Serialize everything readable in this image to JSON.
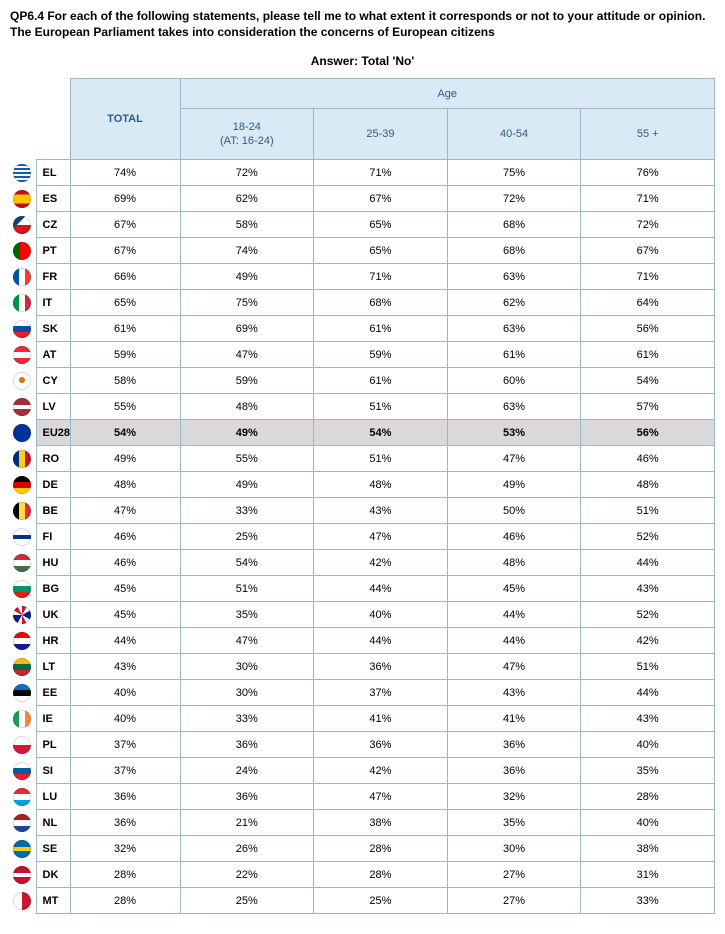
{
  "question": {
    "line1": "QP6.4 For each of the following statements, please tell me to what extent it corresponds or not to your attitude or opinion.",
    "line2": "The European Parliament takes into consideration the concerns of European citizens"
  },
  "answer_label": "Answer: Total 'No'",
  "headers": {
    "total": "TOTAL",
    "age_span": "Age",
    "age_cols": [
      {
        "l1": "18-24",
        "l2": "(AT: 16-24)"
      },
      {
        "l1": "25-39",
        "l2": ""
      },
      {
        "l1": "40-54",
        "l2": ""
      },
      {
        "l1": "55 +",
        "l2": ""
      }
    ]
  },
  "colors": {
    "header_bg": "#daeaf4",
    "header_text": "#2b5a8c",
    "border": "#9ab7cc",
    "highlight_bg": "#d9d9d9"
  },
  "flag_gradients": {
    "EL": "linear-gradient(180deg,#0d5eaf 0 11%,#fff 11% 22%,#0d5eaf 22% 33%,#fff 33% 44%,#0d5eaf 44% 55%,#fff 55% 66%,#0d5eaf 66% 77%,#fff 77% 88%,#0d5eaf 88% 100%)",
    "ES": "linear-gradient(180deg,#c60b1e 0 25%,#ffc400 25% 75%,#c60b1e 75% 100%)",
    "CZ": "linear-gradient(135deg,#11457e 0 35%,transparent 35%),linear-gradient(180deg,#fff 0 50%,#d7141a 50% 100%)",
    "PT": "linear-gradient(90deg,#006600 0 40%,#ff0000 40% 100%)",
    "FR": "linear-gradient(90deg,#0055a4 0 33%,#fff 33% 66%,#ef4135 66% 100%)",
    "IT": "linear-gradient(90deg,#009246 0 33%,#fff 33% 66%,#ce2b37 66% 100%)",
    "SK": "linear-gradient(180deg,#fff 0 33%,#0b4ea2 33% 66%,#ee1c25 66% 100%)",
    "AT": "linear-gradient(180deg,#ed2939 0 33%,#fff 33% 66%,#ed2939 66% 100%)",
    "CY": "radial-gradient(circle at 50% 45%,#d57800 0 22%,#fff 23% 100%)",
    "LV": "linear-gradient(180deg,#9e3039 0 40%,#fff 40% 60%,#9e3039 60% 100%)",
    "EU28": "radial-gradient(circle at 50% 50%,#003399 0 100%)",
    "RO": "linear-gradient(90deg,#002b7f 0 33%,#fcd116 33% 66%,#ce1126 66% 100%)",
    "DE": "linear-gradient(180deg,#000 0 33%,#dd0000 33% 66%,#ffce00 66% 100%)",
    "BE": "linear-gradient(90deg,#000 0 33%,#fae042 33% 66%,#ed2939 66% 100%)",
    "FI": "linear-gradient(180deg,#fff 0 38%,#003580 38% 62%,#fff 62% 100%)",
    "HU": "linear-gradient(180deg,#cd2a3e 0 33%,#fff 33% 66%,#436f4d 66% 100%)",
    "BG": "linear-gradient(180deg,#fff 0 33%,#00966e 33% 66%,#d62612 66% 100%)",
    "UK": "conic-gradient(#cf142b 0 8%,#fff 8% 17%,#00247d 17% 33%,#fff 33% 42%,#cf142b 42% 50%,#fff 50% 58%,#00247d 58% 75%,#fff 75% 83%,#cf142b 83% 92%,#fff 92% 100%)",
    "HR": "linear-gradient(180deg,#ff0000 0 33%,#fff 33% 66%,#171796 66% 100%)",
    "LT": "linear-gradient(180deg,#fdb913 0 33%,#006a44 33% 66%,#c1272d 66% 100%)",
    "EE": "linear-gradient(180deg,#0072ce 0 33%,#000 33% 66%,#fff 66% 100%)",
    "IE": "linear-gradient(90deg,#169b62 0 33%,#fff 33% 66%,#ff883e 66% 100%)",
    "PL": "linear-gradient(180deg,#fff 0 50%,#dc143c 50% 100%)",
    "SI": "linear-gradient(180deg,#fff 0 33%,#005da4 33% 66%,#ed1c24 66% 100%)",
    "LU": "linear-gradient(180deg,#ed2939 0 33%,#fff 33% 66%,#00a1de 66% 100%)",
    "NL": "linear-gradient(180deg,#ae1c28 0 33%,#fff 33% 66%,#21468b 66% 100%)",
    "SE": "linear-gradient(180deg,#006aa7 0 38%,#fecc00 38% 62%,#006aa7 62% 100%)",
    "DK": "linear-gradient(180deg,#c8102e 0 38%,#fff 38% 62%,#c8102e 62% 100%)",
    "MT": "linear-gradient(90deg,#fff 0 50%,#cf142b 50% 100%)"
  },
  "rows": [
    {
      "code": "EL",
      "vals": [
        "74%",
        "72%",
        "71%",
        "75%",
        "76%"
      ]
    },
    {
      "code": "ES",
      "vals": [
        "69%",
        "62%",
        "67%",
        "72%",
        "71%"
      ]
    },
    {
      "code": "CZ",
      "vals": [
        "67%",
        "58%",
        "65%",
        "68%",
        "72%"
      ]
    },
    {
      "code": "PT",
      "vals": [
        "67%",
        "74%",
        "65%",
        "68%",
        "67%"
      ]
    },
    {
      "code": "FR",
      "vals": [
        "66%",
        "49%",
        "71%",
        "63%",
        "71%"
      ]
    },
    {
      "code": "IT",
      "vals": [
        "65%",
        "75%",
        "68%",
        "62%",
        "64%"
      ]
    },
    {
      "code": "SK",
      "vals": [
        "61%",
        "69%",
        "61%",
        "63%",
        "56%"
      ]
    },
    {
      "code": "AT",
      "vals": [
        "59%",
        "47%",
        "59%",
        "61%",
        "61%"
      ]
    },
    {
      "code": "CY",
      "vals": [
        "58%",
        "59%",
        "61%",
        "60%",
        "54%"
      ]
    },
    {
      "code": "LV",
      "vals": [
        "55%",
        "48%",
        "51%",
        "63%",
        "57%"
      ]
    },
    {
      "code": "EU28",
      "vals": [
        "54%",
        "49%",
        "54%",
        "53%",
        "56%"
      ],
      "highlight": true
    },
    {
      "code": "RO",
      "vals": [
        "49%",
        "55%",
        "51%",
        "47%",
        "46%"
      ]
    },
    {
      "code": "DE",
      "vals": [
        "48%",
        "49%",
        "48%",
        "49%",
        "48%"
      ]
    },
    {
      "code": "BE",
      "vals": [
        "47%",
        "33%",
        "43%",
        "50%",
        "51%"
      ]
    },
    {
      "code": "FI",
      "vals": [
        "46%",
        "25%",
        "47%",
        "46%",
        "52%"
      ]
    },
    {
      "code": "HU",
      "vals": [
        "46%",
        "54%",
        "42%",
        "48%",
        "44%"
      ]
    },
    {
      "code": "BG",
      "vals": [
        "45%",
        "51%",
        "44%",
        "45%",
        "43%"
      ]
    },
    {
      "code": "UK",
      "vals": [
        "45%",
        "35%",
        "40%",
        "44%",
        "52%"
      ]
    },
    {
      "code": "HR",
      "vals": [
        "44%",
        "47%",
        "44%",
        "44%",
        "42%"
      ]
    },
    {
      "code": "LT",
      "vals": [
        "43%",
        "30%",
        "36%",
        "47%",
        "51%"
      ]
    },
    {
      "code": "EE",
      "vals": [
        "40%",
        "30%",
        "37%",
        "43%",
        "44%"
      ]
    },
    {
      "code": "IE",
      "vals": [
        "40%",
        "33%",
        "41%",
        "41%",
        "43%"
      ]
    },
    {
      "code": "PL",
      "vals": [
        "37%",
        "36%",
        "36%",
        "36%",
        "40%"
      ]
    },
    {
      "code": "SI",
      "vals": [
        "37%",
        "24%",
        "42%",
        "36%",
        "35%"
      ]
    },
    {
      "code": "LU",
      "vals": [
        "36%",
        "36%",
        "47%",
        "32%",
        "28%"
      ]
    },
    {
      "code": "NL",
      "vals": [
        "36%",
        "21%",
        "38%",
        "35%",
        "40%"
      ]
    },
    {
      "code": "SE",
      "vals": [
        "32%",
        "26%",
        "28%",
        "30%",
        "38%"
      ]
    },
    {
      "code": "DK",
      "vals": [
        "28%",
        "22%",
        "28%",
        "27%",
        "31%"
      ]
    },
    {
      "code": "MT",
      "vals": [
        "28%",
        "25%",
        "25%",
        "27%",
        "33%"
      ]
    }
  ]
}
